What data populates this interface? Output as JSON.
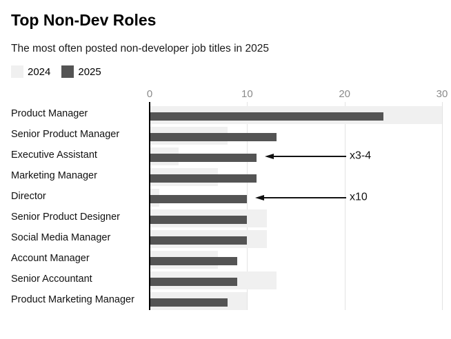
{
  "header": {
    "title": "Top Non-Dev Roles",
    "subtitle": "The most often posted non-developer job titles in 2025"
  },
  "chart_data": {
    "type": "bar",
    "orientation": "horizontal",
    "bar_style": "overlapping",
    "title": "Top Non-Dev Roles",
    "subtitle": "The most often posted non-developer job titles in 2025",
    "categories": [
      "Product Manager",
      "Senior Product Manager",
      "Executive Assistant",
      "Marketing Manager",
      "Director",
      "Senior Product Designer",
      "Social Media Manager",
      "Account Manager",
      "Senior Accountant",
      "Product Marketing Manager"
    ],
    "series": [
      {
        "name": "2024",
        "color": "#f0f0f0",
        "values": [
          30,
          8,
          3,
          7,
          1,
          12,
          12,
          7,
          13,
          10
        ]
      },
      {
        "name": "2025",
        "color": "#545454",
        "values": [
          24,
          13,
          11,
          11,
          10,
          10,
          10,
          9,
          9,
          8
        ]
      }
    ],
    "x_axis": {
      "min": 0,
      "max": 30,
      "ticks": [
        0,
        10,
        20,
        30
      ]
    },
    "grid": "vertical",
    "legend_position": "top-left",
    "annotations": [
      {
        "label": "x3-4",
        "category": "Executive Assistant",
        "series": "2025"
      },
      {
        "label": "x10",
        "category": "Director",
        "series": "2025"
      }
    ],
    "colors": {
      "grid": "#e3e3e3",
      "axis": "#000000",
      "tick_text": "#8a8a8a",
      "annotation": "#111111"
    }
  }
}
